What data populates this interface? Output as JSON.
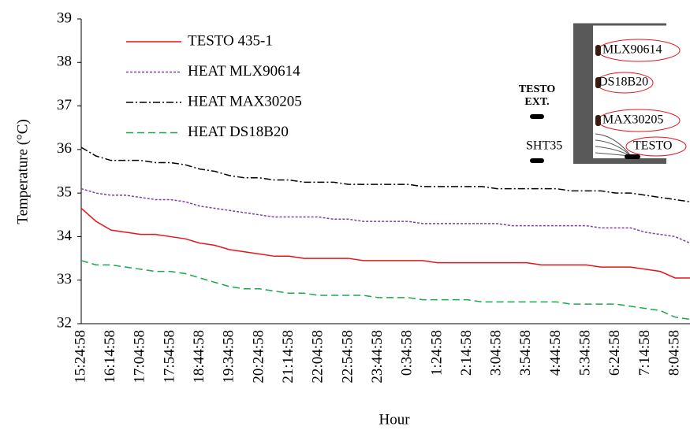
{
  "chart_data": {
    "type": "line",
    "x_label": "Hour",
    "y_label": "Temperature (°C)",
    "categories": [
      "15:24:58",
      null,
      "16:14:58",
      null,
      "17:04:58",
      null,
      "17:54:58",
      null,
      "18:44:58",
      null,
      "19:34:58",
      null,
      "20:24:58",
      null,
      "21:14:58",
      null,
      "22:04:58",
      null,
      "22:54:58",
      null,
      "23:44:58",
      null,
      "0:34:58",
      null,
      "1:24:58",
      null,
      "2:14:58",
      null,
      "3:04:58",
      null,
      "3:54:58",
      null,
      "4:44:58",
      null,
      "5:34:58",
      null,
      "6:24:58",
      null,
      "7:14:58",
      null,
      "8:04:58",
      null
    ],
    "series": [
      {
        "name": "TESTO 435-1",
        "color": "#e8141b",
        "dash": "none",
        "values": [
          34.65,
          34.35,
          34.15,
          34.1,
          34.05,
          34.05,
          34.0,
          33.95,
          33.85,
          33.8,
          33.7,
          33.65,
          33.6,
          33.55,
          33.55,
          33.5,
          33.5,
          33.5,
          33.5,
          33.45,
          33.45,
          33.45,
          33.45,
          33.45,
          33.4,
          33.4,
          33.4,
          33.4,
          33.4,
          33.4,
          33.4,
          33.35,
          33.35,
          33.35,
          33.35,
          33.3,
          33.3,
          33.3,
          33.25,
          33.2,
          33.05,
          33.05
        ]
      },
      {
        "name": "HEAT MLX90614",
        "color": "#7a3fa8",
        "dash": "3 2",
        "values": [
          35.1,
          35.0,
          34.95,
          34.95,
          34.9,
          34.85,
          34.85,
          34.8,
          34.7,
          34.65,
          34.6,
          34.55,
          34.5,
          34.45,
          34.45,
          34.45,
          34.45,
          34.4,
          34.4,
          34.35,
          34.35,
          34.35,
          34.35,
          34.3,
          34.3,
          34.3,
          34.3,
          34.3,
          34.3,
          34.25,
          34.25,
          34.25,
          34.25,
          34.25,
          34.25,
          34.2,
          34.2,
          34.2,
          34.1,
          34.05,
          34.0,
          33.85
        ]
      },
      {
        "name": "HEAT MAX30205",
        "color": "#000000",
        "dash": "9 3 2 3",
        "values": [
          36.05,
          35.85,
          35.75,
          35.75,
          35.75,
          35.7,
          35.7,
          35.65,
          35.55,
          35.5,
          35.4,
          35.35,
          35.35,
          35.3,
          35.3,
          35.25,
          35.25,
          35.25,
          35.2,
          35.2,
          35.2,
          35.2,
          35.2,
          35.15,
          35.15,
          35.15,
          35.15,
          35.15,
          35.1,
          35.1,
          35.1,
          35.1,
          35.1,
          35.05,
          35.05,
          35.05,
          35.0,
          35.0,
          34.95,
          34.9,
          34.85,
          34.8
        ]
      },
      {
        "name": "HEAT DS18B20",
        "color": "#1aa84a",
        "dash": "9 5",
        "values": [
          33.45,
          33.35,
          33.35,
          33.3,
          33.25,
          33.2,
          33.2,
          33.15,
          33.05,
          32.95,
          32.85,
          32.8,
          32.8,
          32.75,
          32.7,
          32.7,
          32.65,
          32.65,
          32.65,
          32.65,
          32.6,
          32.6,
          32.6,
          32.55,
          32.55,
          32.55,
          32.55,
          32.5,
          32.5,
          32.5,
          32.5,
          32.5,
          32.5,
          32.45,
          32.45,
          32.45,
          32.45,
          32.4,
          32.35,
          32.3,
          32.15,
          32.1
        ]
      }
    ],
    "ylim": [
      32,
      39
    ],
    "yticks": [
      32,
      33,
      34,
      35,
      36,
      37,
      38,
      39
    ],
    "annotations": [
      "TESTO",
      "EXT.",
      "SHT35",
      "MLX90614",
      "DS18B20",
      "MAX30205",
      "TESTO"
    ]
  }
}
